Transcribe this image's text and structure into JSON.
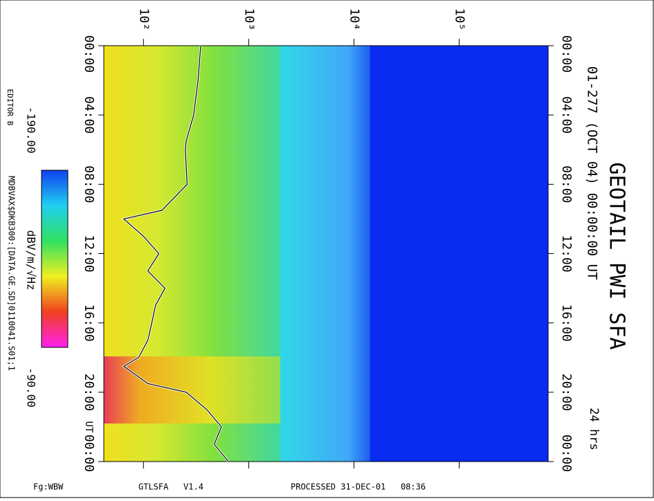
{
  "chart_data": {
    "type": "spectrogram",
    "title": "GEOTAIL PWI SFA",
    "subtitle": "01-277 (OCT 04) 00:00:00 UT",
    "duration": "24 hrs",
    "editor": "EDITOR B",
    "file": "MDBVAX$DKB300:[DATA.GE.SD]0110041.S01;1",
    "colorbar": {
      "min_label": "-190.00",
      "unit": "dBV/m/√Hz",
      "max_label": "-90.00"
    },
    "footer": {
      "left": "Fg:WBW",
      "middle": "GTLSFA   V1.4",
      "right": "PROCESSED 31-DEC-01   08:36"
    },
    "time_axis_label": "UT",
    "xscale": "log",
    "xlim": [
      42,
      700000
    ],
    "xticks": [
      {
        "value": 100,
        "label": "10²"
      },
      {
        "value": 1000,
        "label": "10³"
      },
      {
        "value": 10000,
        "label": "10⁴"
      },
      {
        "value": 100000,
        "label": "10⁵"
      }
    ],
    "ylim": [
      0,
      24
    ],
    "yticks": [
      {
        "value": 0,
        "label": "00:00"
      },
      {
        "value": 4,
        "label": "04:00"
      },
      {
        "value": 8,
        "label": "08:00"
      },
      {
        "value": 12,
        "label": "12:00"
      },
      {
        "value": 16,
        "label": "16:00"
      },
      {
        "value": 20,
        "label": "20:00"
      },
      {
        "value": 24,
        "label": "00:00"
      }
    ],
    "series": [
      {
        "color": "#000000",
        "x": [
          350,
          330,
          300,
          255,
          250,
          260,
          150,
          65,
          100,
          140,
          110,
          160,
          130,
          120,
          110,
          90,
          65,
          110,
          255,
          400,
          550,
          470,
          640
        ],
        "values": [
          0,
          2,
          4,
          5.5,
          6,
          8,
          9.5,
          10,
          11,
          12,
          13,
          14,
          15,
          16,
          17,
          18,
          18.5,
          19.5,
          20,
          21,
          22,
          23,
          24
        ]
      }
    ]
  }
}
